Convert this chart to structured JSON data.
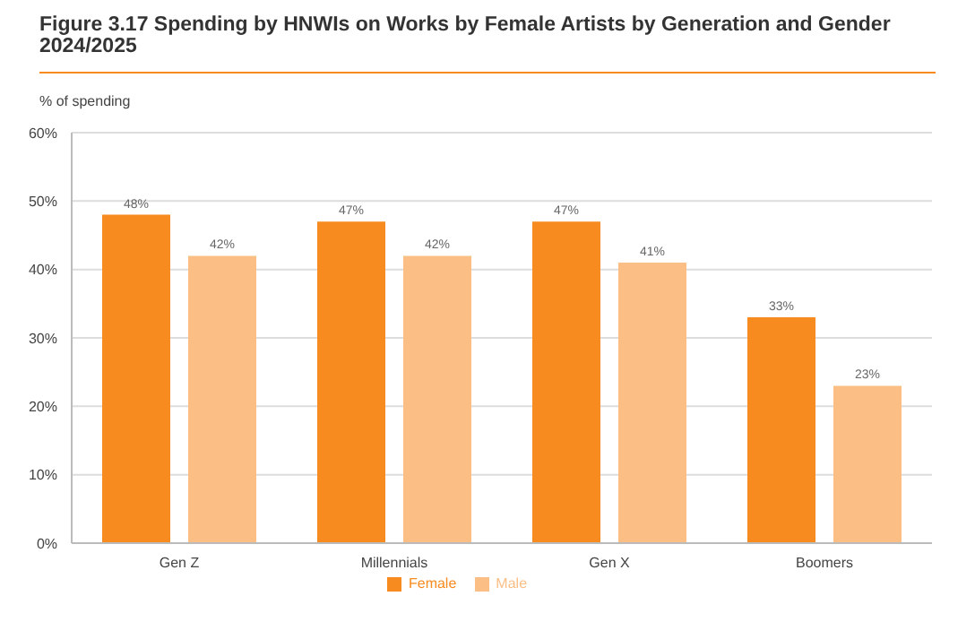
{
  "chart_data": {
    "type": "bar",
    "title": "Figure 3.17 Spending by HNWIs on Works by Female Artists by Generation and Gender 2024/2025",
    "ylabel": "% of spending",
    "categories": [
      "Gen Z",
      "Millennials",
      "Gen X",
      "Boomers"
    ],
    "series": [
      {
        "name": "Female",
        "color": "#f78b1f",
        "values": [
          48,
          47,
          47,
          33
        ],
        "value_labels": [
          "48%",
          "47%",
          "47%",
          "33%"
        ]
      },
      {
        "name": "Male",
        "color": "#fbbf86",
        "values": [
          42,
          42,
          41,
          23
        ],
        "value_labels": [
          "42%",
          "42%",
          "41%",
          "23%"
        ]
      }
    ],
    "ylim": [
      0,
      60
    ],
    "yticks": [
      {
        "value": 0,
        "label": "0%"
      },
      {
        "value": 10,
        "label": "10%"
      },
      {
        "value": 20,
        "label": "20%"
      },
      {
        "value": 30,
        "label": "30%"
      },
      {
        "value": 40,
        "label": "40%"
      },
      {
        "value": 50,
        "label": "50%"
      },
      {
        "value": 60,
        "label": "60%"
      }
    ],
    "grid": "y",
    "legend": "bottom"
  }
}
